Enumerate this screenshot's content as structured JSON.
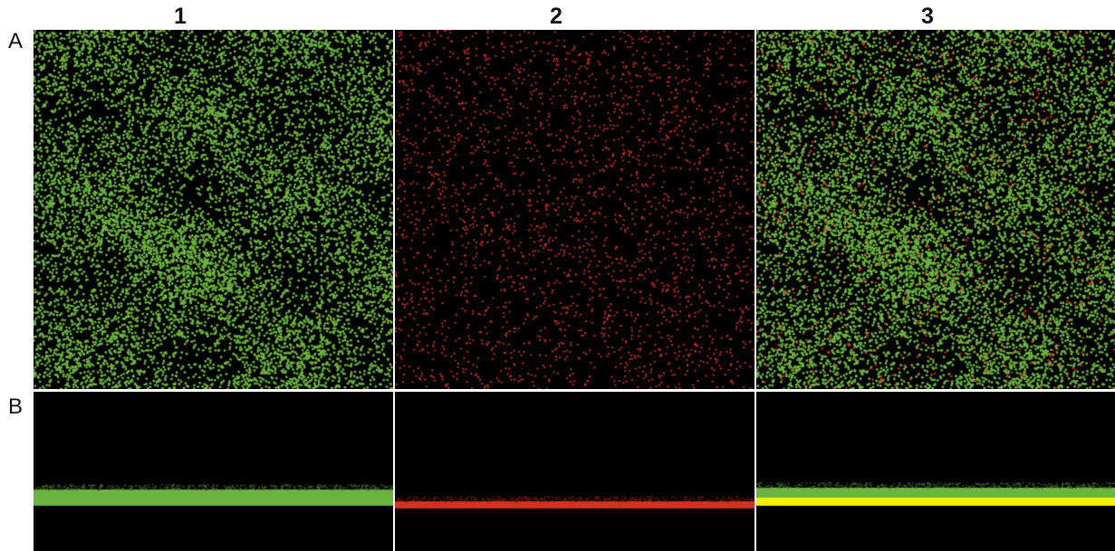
{
  "figure": {
    "column_labels": [
      "1",
      "2",
      "3"
    ],
    "row_labels": [
      "A",
      "B"
    ]
  },
  "panels": [
    {
      "row": "A",
      "column": "1",
      "channel": "green"
    },
    {
      "row": "A",
      "column": "2",
      "channel": "red"
    },
    {
      "row": "A",
      "column": "3",
      "channel": "merged"
    },
    {
      "row": "B",
      "column": "1",
      "channel": "green"
    },
    {
      "row": "B",
      "column": "2",
      "channel": "red"
    },
    {
      "row": "B",
      "column": "3",
      "channel": "merged"
    }
  ],
  "colors": {
    "background": "#000000",
    "green": "#6db33f",
    "red": "#d2321e",
    "yellow": "#f2f200",
    "divider": "#d9d9d9"
  }
}
